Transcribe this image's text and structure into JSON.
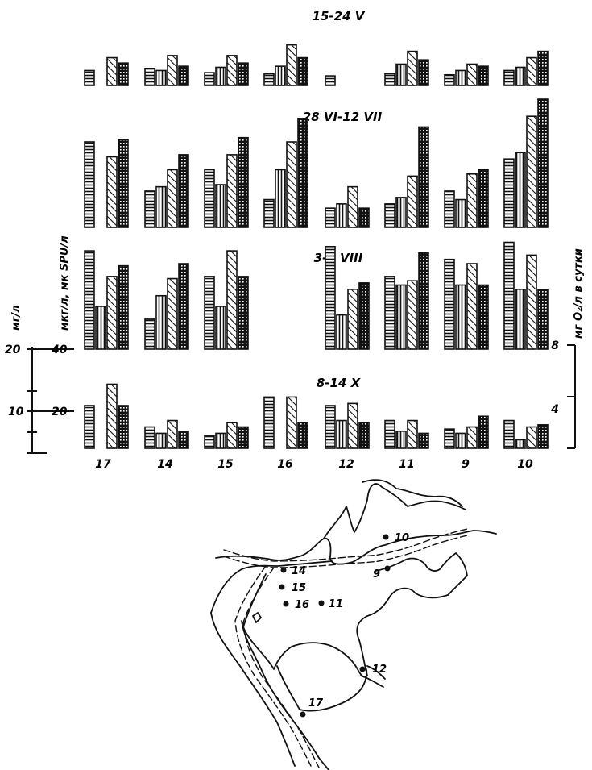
{
  "chart_data": {
    "type": "bar",
    "categories": [
      "17",
      "14",
      "15",
      "16",
      "12",
      "11",
      "9",
      "10"
    ],
    "series_order": [
      "horizontal",
      "vertical",
      "diagonal",
      "dotted-dark"
    ],
    "panels": [
      {
        "title": "15-24 V",
        "bars": [
          {
            "station": "17",
            "values": [
              7,
              null,
              13,
              10.5
            ]
          },
          {
            "station": "14",
            "values": [
              8,
              7,
              14,
              9
            ]
          },
          {
            "station": "15",
            "values": [
              6,
              8.5,
              14,
              10.5
            ]
          },
          {
            "station": "16",
            "values": [
              5.5,
              9,
              19,
              13
            ]
          },
          {
            "station": "12",
            "values": [
              4.5,
              null,
              null,
              null
            ]
          },
          {
            "station": "11",
            "values": [
              5.5,
              10,
              16,
              12
            ]
          },
          {
            "station": "9",
            "values": [
              5,
              7,
              10,
              9
            ]
          },
          {
            "station": "10",
            "values": [
              7,
              8.5,
              13,
              16
            ]
          }
        ]
      },
      {
        "title": "28 VI-12 VII",
        "bars": [
          {
            "station": "17",
            "values": [
              40,
              null,
              33,
              41
            ]
          },
          {
            "station": "14",
            "values": [
              17,
              19,
              27,
              34
            ]
          },
          {
            "station": "15",
            "values": [
              27,
              20,
              34,
              42
            ]
          },
          {
            "station": "16",
            "values": [
              13,
              27,
              40,
              51
            ]
          },
          {
            "station": "12",
            "values": [
              9,
              11,
              19,
              9
            ]
          },
          {
            "station": "11",
            "values": [
              11,
              14,
              24,
              47
            ]
          },
          {
            "station": "9",
            "values": [
              17,
              13,
              25,
              27
            ]
          },
          {
            "station": "10",
            "values": [
              32,
              35,
              52,
              60
            ]
          }
        ]
      },
      {
        "title": "3-9 VIII",
        "bars": [
          {
            "station": "17",
            "values": [
              46,
              20,
              34,
              39
            ]
          },
          {
            "station": "14",
            "values": [
              14,
              25,
              33,
              40
            ]
          },
          {
            "station": "15",
            "values": [
              34,
              20,
              46,
              34
            ]
          },
          {
            "station": "16",
            "values": [
              null,
              null,
              null,
              null
            ]
          },
          {
            "station": "12",
            "values": [
              48,
              16,
              28,
              31
            ]
          },
          {
            "station": "11",
            "values": [
              34,
              30,
              32,
              45
            ]
          },
          {
            "station": "9",
            "values": [
              42,
              30,
              40,
              30
            ]
          },
          {
            "station": "10",
            "values": [
              50,
              28,
              44,
              28
            ]
          }
        ]
      },
      {
        "title": "8-14 X",
        "bars": [
          {
            "station": "17",
            "values": [
              20,
              null,
              30,
              20
            ]
          },
          {
            "station": "14",
            "values": [
              10,
              7,
              13,
              8
            ]
          },
          {
            "station": "15",
            "values": [
              6,
              7,
              12,
              10
            ]
          },
          {
            "station": "16",
            "values": [
              24,
              null,
              24,
              12
            ]
          },
          {
            "station": "12",
            "values": [
              20,
              13,
              21,
              12
            ]
          },
          {
            "station": "11",
            "values": [
              13,
              8,
              13,
              7
            ]
          },
          {
            "station": "9",
            "values": [
              9,
              7,
              10,
              15
            ]
          },
          {
            "station": "10",
            "values": [
              13,
              4,
              10,
              11
            ]
          }
        ]
      }
    ],
    "axes": {
      "left_outer": {
        "label": "мг/л",
        "ticks": [
          "20",
          "10"
        ]
      },
      "left_inner": {
        "label": "мкг/л, мк SPU/л",
        "ticks": [
          "40",
          "20"
        ]
      },
      "right": {
        "label": "мг O₂/л в сутки",
        "ticks": [
          "8",
          "4"
        ]
      }
    }
  },
  "map": {
    "stations": [
      "10",
      "9",
      "14",
      "15",
      "16",
      "11",
      "12",
      "17"
    ]
  }
}
